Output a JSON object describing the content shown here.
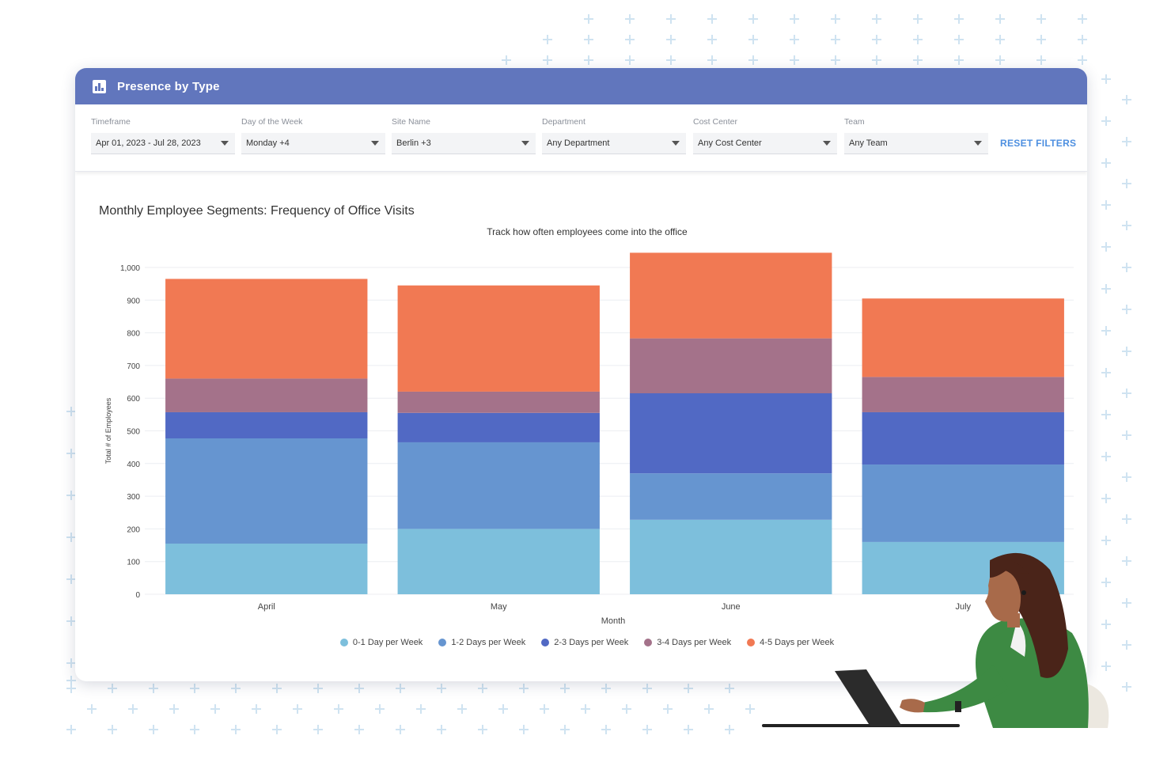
{
  "header": {
    "title": "Presence by Type",
    "icon": "bar-chart-icon"
  },
  "filters": [
    {
      "label": "Timeframe",
      "value": "Apr 01, 2023 - Jul 28, 2023"
    },
    {
      "label": "Day of the Week",
      "value": "Monday +4"
    },
    {
      "label": "Site Name",
      "value": "Berlin +3"
    },
    {
      "label": "Department",
      "value": "Any Department"
    },
    {
      "label": "Cost Center",
      "value": "Any Cost Center"
    },
    {
      "label": "Team",
      "value": "Any Team"
    }
  ],
  "reset_label": "RESET FILTERS",
  "colors": {
    "header": "#6176bd",
    "accent": "#4d8fe0"
  },
  "chart_data": {
    "type": "bar",
    "stacked": true,
    "title": "Monthly Employee Segments: Frequency of Office Visits",
    "subtitle": "Track how often employees come into the office",
    "xlabel": "Month",
    "ylabel": "Total # of Employees",
    "ylim": [
      0,
      1000
    ],
    "yticks": [
      0,
      100,
      200,
      300,
      400,
      500,
      600,
      700,
      800,
      900,
      1000
    ],
    "ytick_labels": [
      "0",
      "100",
      "200",
      "300",
      "400",
      "500",
      "600",
      "700",
      "800",
      "900",
      "1,000"
    ],
    "categories": [
      "April",
      "May",
      "June",
      "July"
    ],
    "series": [
      {
        "name": "0-1 Day per Week",
        "color": "#7dbfdc",
        "values": [
          155,
          200,
          228,
          160
        ]
      },
      {
        "name": "1-2 Days per Week",
        "color": "#6695d0",
        "values": [
          322,
          265,
          142,
          237
        ]
      },
      {
        "name": "2-3 Days per Week",
        "color": "#5169c4",
        "values": [
          80,
          90,
          245,
          160
        ]
      },
      {
        "name": "3-4 Days per Week",
        "color": "#a4728a",
        "values": [
          103,
          65,
          168,
          108
        ]
      },
      {
        "name": "4-5 Days per Week",
        "color": "#f17953",
        "values": [
          305,
          325,
          262,
          240
        ]
      }
    ],
    "legend": "bottom",
    "grid": true
  }
}
